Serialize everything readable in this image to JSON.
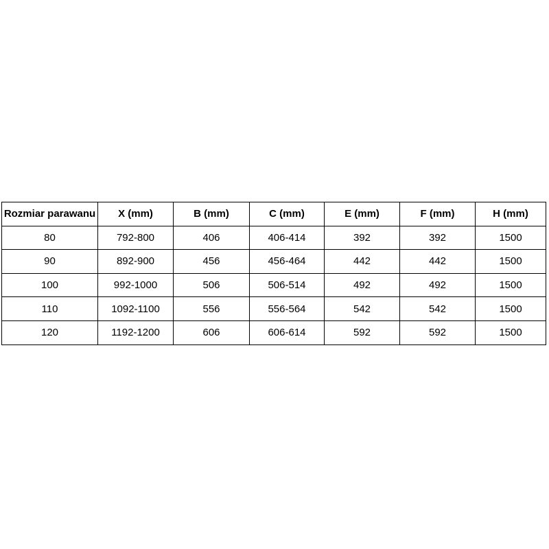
{
  "page": {
    "background_color": "#ffffff"
  },
  "table": {
    "border_color": "#000000",
    "text_color": "#000000",
    "columns": [
      "Rozmiar parawanu",
      "X (mm)",
      "B (mm)",
      "C (mm)",
      "E (mm)",
      "F (mm)",
      "H (mm)"
    ],
    "rows": [
      [
        "80",
        "792-800",
        "406",
        "406-414",
        "392",
        "392",
        "1500"
      ],
      [
        "90",
        "892-900",
        "456",
        "456-464",
        "442",
        "442",
        "1500"
      ],
      [
        "100",
        "992-1000",
        "506",
        "506-514",
        "492",
        "492",
        "1500"
      ],
      [
        "110",
        "1092-1100",
        "556",
        "556-564",
        "542",
        "542",
        "1500"
      ],
      [
        "120",
        "1192-1200",
        "606",
        "606-614",
        "592",
        "592",
        "1500"
      ]
    ]
  }
}
